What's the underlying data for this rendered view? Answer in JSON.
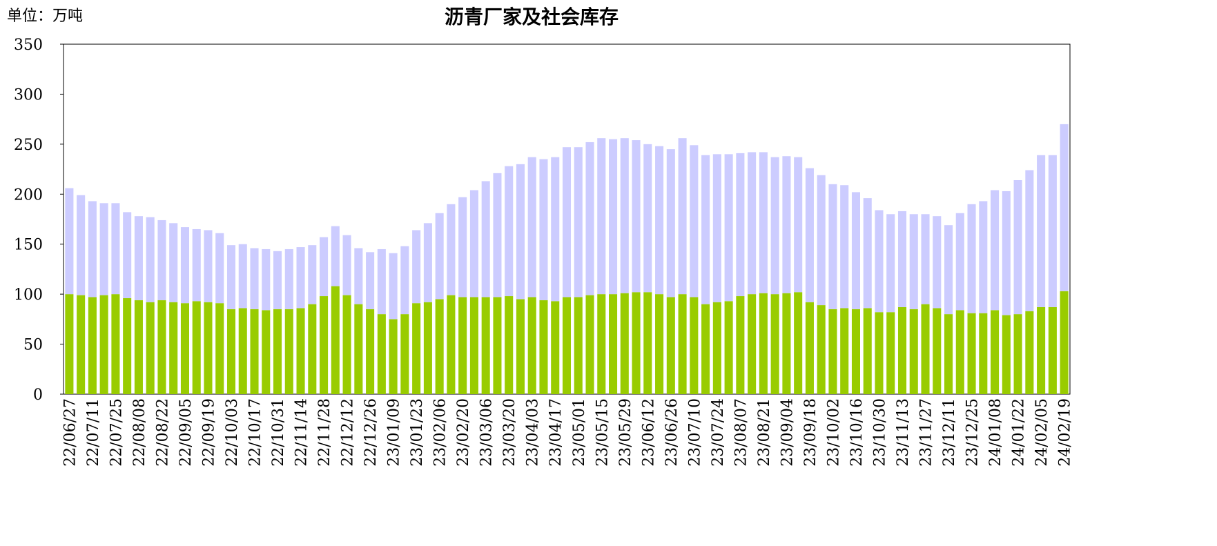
{
  "chart_data": {
    "type": "stacked_bar",
    "title": "沥青厂家及社会库存",
    "unit_label": "单位：万吨",
    "categories": [
      "22/06/27",
      null,
      "22/07/11",
      null,
      "22/07/25",
      null,
      "22/08/08",
      null,
      "22/08/22",
      null,
      "22/09/05",
      null,
      "22/09/19",
      null,
      "22/10/03",
      null,
      "22/10/17",
      null,
      "22/10/31",
      null,
      "22/11/14",
      null,
      "22/11/28",
      null,
      "22/12/12",
      null,
      "22/12/26",
      null,
      "23/01/09",
      null,
      "23/01/23",
      null,
      "23/02/06",
      null,
      "23/02/20",
      null,
      "23/03/06",
      null,
      "23/03/20",
      null,
      "23/04/03",
      null,
      "23/04/17",
      null,
      "23/05/01",
      null,
      "23/05/15",
      null,
      "23/05/29",
      null,
      "23/06/12",
      null,
      "23/06/26",
      null,
      "23/07/10",
      null,
      "23/07/24",
      null,
      "23/08/07",
      null,
      "23/08/21",
      null,
      "23/09/04",
      null,
      "23/09/18",
      null,
      "23/10/02",
      null,
      "23/10/16",
      null,
      "23/10/30",
      null,
      "23/11/13",
      null,
      "23/11/27",
      null,
      "23/12/11",
      null,
      "23/12/25",
      null,
      "24/01/08",
      null,
      "24/01/22",
      null,
      "24/02/05",
      null,
      "24/02/19"
    ],
    "series": [
      {
        "color": "#99cc00",
        "values": [
          100,
          99,
          97,
          99,
          100,
          96,
          94,
          92,
          94,
          92,
          91,
          93,
          92,
          91,
          85,
          86,
          85,
          84,
          85,
          85,
          86,
          90,
          98,
          108,
          99,
          90,
          85,
          80,
          75,
          80,
          91,
          92,
          95,
          99,
          97,
          97,
          97,
          97,
          98,
          95,
          97,
          94,
          93,
          97,
          97,
          99,
          100,
          100,
          101,
          102,
          102,
          100,
          97,
          100,
          97,
          90,
          92,
          93,
          98,
          100,
          101,
          100,
          101,
          102,
          92,
          89,
          85,
          86,
          85,
          86,
          82,
          82,
          87,
          85,
          90,
          86,
          80,
          84,
          81,
          81,
          84,
          79,
          80,
          83,
          87,
          87,
          103
        ]
      },
      {
        "color": "#ccccff",
        "values": [
          106,
          100,
          96,
          92,
          91,
          86,
          84,
          85,
          80,
          79,
          76,
          72,
          72,
          70,
          64,
          64,
          61,
          61,
          58,
          60,
          61,
          59,
          59,
          60,
          60,
          56,
          57,
          65,
          66,
          68,
          73,
          79,
          86,
          91,
          100,
          107,
          116,
          124,
          130,
          135,
          140,
          141,
          144,
          150,
          150,
          153,
          156,
          155,
          155,
          152,
          148,
          148,
          148,
          156,
          152,
          149,
          148,
          147,
          143,
          142,
          141,
          137,
          137,
          135,
          134,
          130,
          125,
          123,
          117,
          110,
          102,
          98,
          96,
          95,
          90,
          92,
          89,
          97,
          109,
          112,
          120,
          124,
          134,
          141,
          152,
          152,
          167
        ]
      }
    ],
    "ylim": [
      0,
      350
    ],
    "yticks": [
      0,
      50,
      100,
      150,
      200,
      250,
      300,
      350
    ],
    "grid": false
  }
}
